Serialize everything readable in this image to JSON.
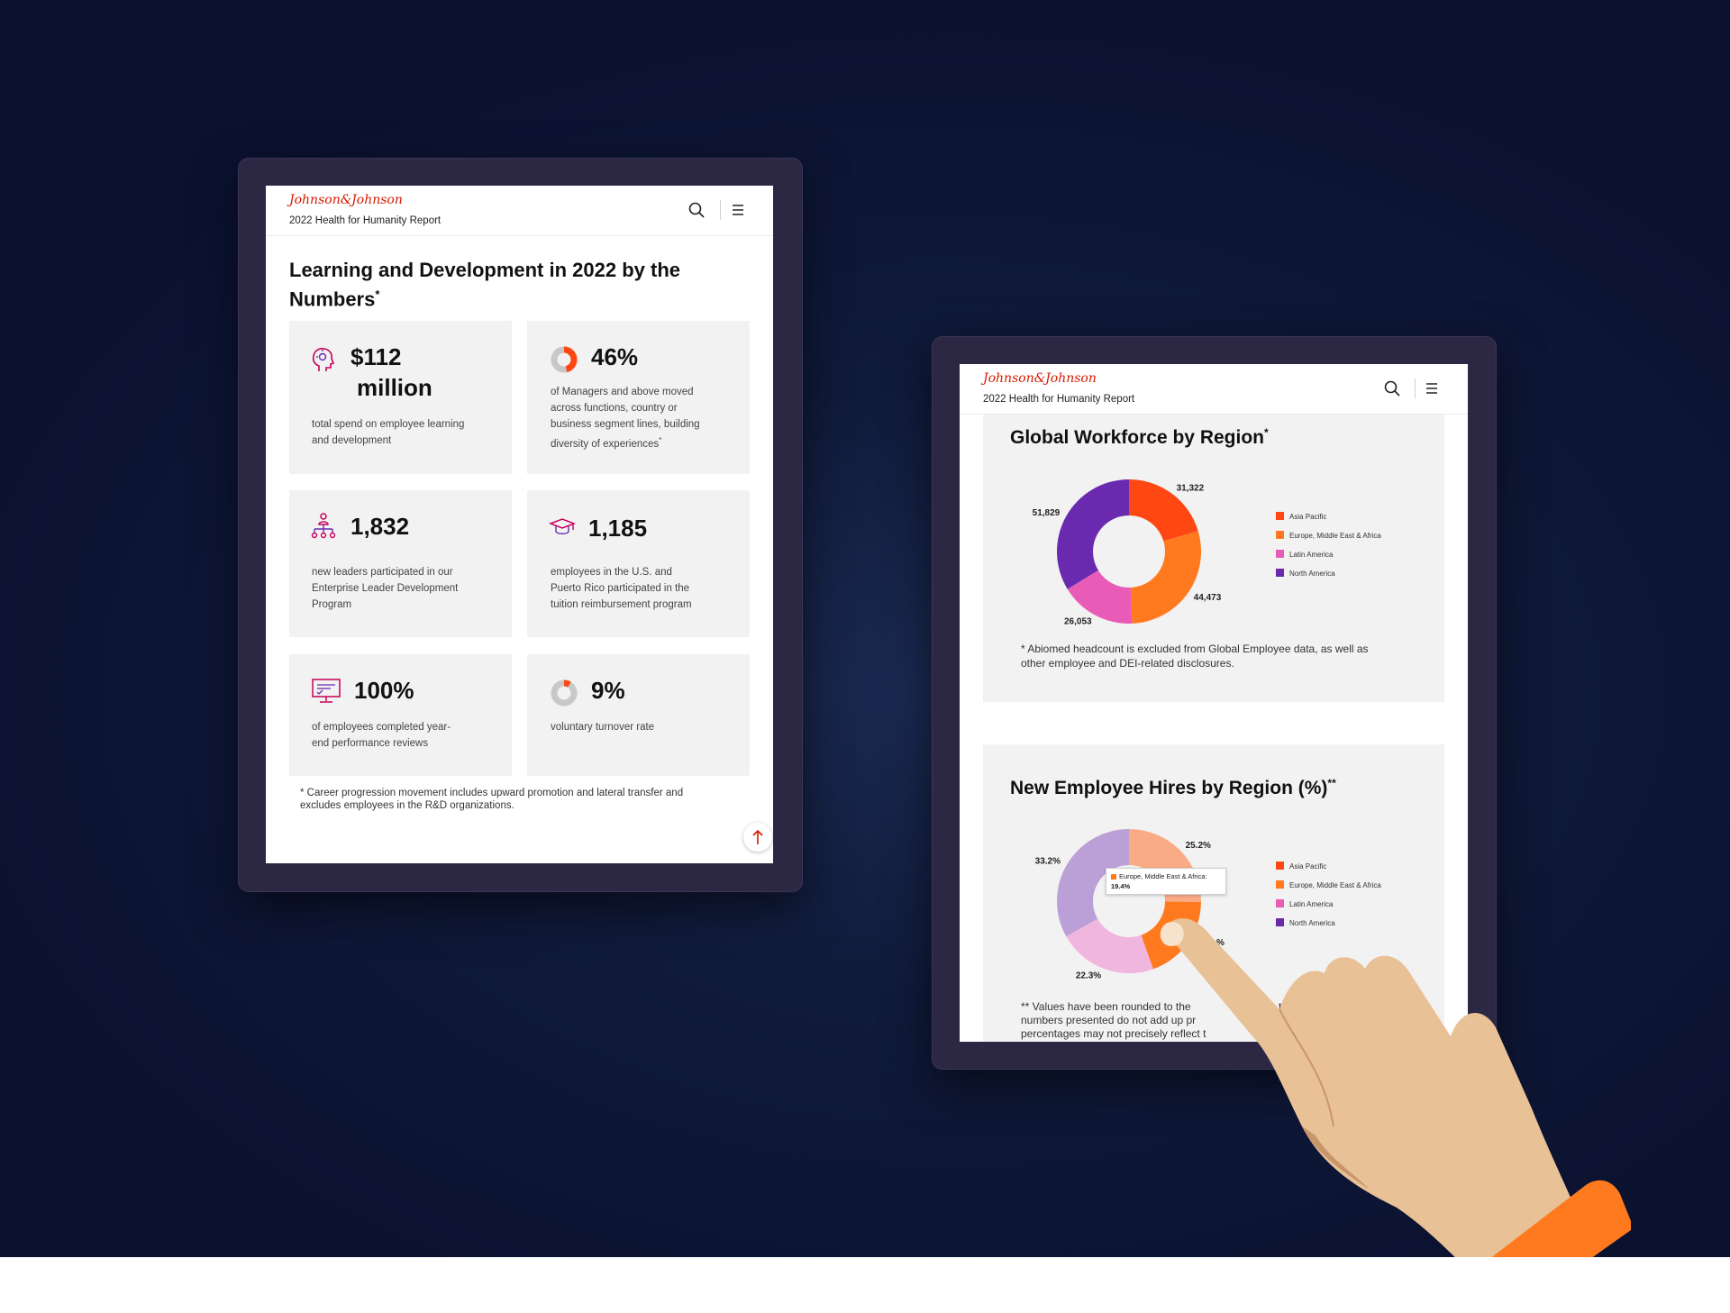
{
  "brand": {
    "logo_text": "Johnson&Johnson",
    "report_title": "2022 Health for Humanity Report",
    "red": "#d51900"
  },
  "left_tablet": {
    "page_title": "Learning and Development in 2022 by the Numbers",
    "title_mark": "*",
    "stats": [
      {
        "icon": "head-idea-icon",
        "value_line1": "$112",
        "value_line2": "million",
        "desc": [
          "total spend on employee learning",
          "and development"
        ]
      },
      {
        "icon": "donut-percent-icon",
        "value": "46%",
        "fraction": 0.46,
        "desc": [
          "of Managers and above moved",
          "across functions, country or",
          "business segment lines, building",
          "diversity of experiences"
        ],
        "desc_mark": "*"
      },
      {
        "icon": "org-chart-icon",
        "value": "1,832",
        "desc": [
          "new leaders participated in our",
          "Enterprise Leader Development",
          "Program"
        ]
      },
      {
        "icon": "graduation-cap-icon",
        "value": "1,185",
        "desc": [
          "employees in the U.S. and",
          "Puerto Rico participated in the",
          "tuition reimbursement program"
        ]
      },
      {
        "icon": "review-screen-icon",
        "value": "100%",
        "desc": [
          "of employees completed year-",
          "end performance reviews"
        ]
      },
      {
        "icon": "donut-percent-icon",
        "value": "9%",
        "fraction": 0.09,
        "desc": [
          "voluntary turnover rate"
        ]
      }
    ],
    "footnote": [
      "* Career progression movement includes upward promotion and lateral transfer and",
      "excludes employees in the R&D organizations."
    ]
  },
  "right_tablet": {
    "chart_data": [
      {
        "type": "pie",
        "title": "Global Workforce by Region",
        "title_mark": "*",
        "categories": [
          "Asia Pacific",
          "Europe, Middle East & Africa",
          "Latin America",
          "North America"
        ],
        "values": [
          31322,
          44473,
          26053,
          51829
        ],
        "value_labels": [
          "31,322",
          "44,473",
          "26,053",
          "51,829"
        ],
        "colors": [
          "#ff4713",
          "#ff7a1f",
          "#e85cb8",
          "#6a2ab0"
        ],
        "legend": "right",
        "footnote": [
          "* Abiomed headcount is excluded from Global Employee data, as well as",
          "other employee and DEI-related disclosures."
        ]
      },
      {
        "type": "pie",
        "title": "New Employee Hires by Region (%)",
        "title_mark": "**",
        "categories": [
          "Asia Pacific",
          "Europe, Middle East & Africa",
          "Latin America",
          "North America"
        ],
        "values": [
          25.2,
          19.4,
          22.3,
          33.2
        ],
        "value_labels": [
          "25.2%",
          "",
          "22.3%",
          "33.2%"
        ],
        "colors": [
          "#f9ab86",
          "#ff7a1f",
          "#f0b6dd",
          "#bba0d8"
        ],
        "highlight_index": 1,
        "tooltip": {
          "label": "Europe, Middle East & Africa:",
          "value": "19.4%"
        },
        "partial_label": "%",
        "legend": "right",
        "legend_colors": [
          "#ff4713",
          "#ff7a1f",
          "#e85cb8",
          "#6a2ab0"
        ],
        "footnote": [
          "** Values have been rounded to the",
          "numbers presented do not add up pr",
          "percentages may not precisely reflect t"
        ],
        "footnote_tail": "th."
      }
    ]
  },
  "hand": {
    "skin": "#e8c196",
    "cuff": "#ff7a1f"
  }
}
